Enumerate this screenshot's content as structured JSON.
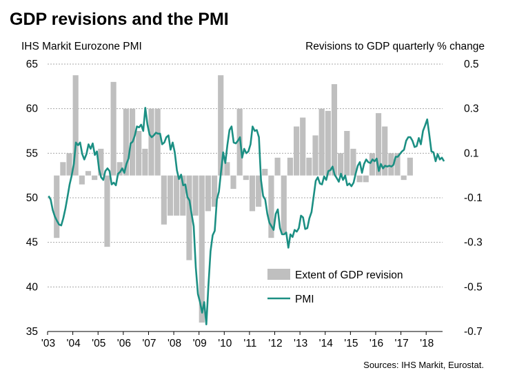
{
  "title": "GDP revisions and the PMI",
  "left_axis_label": "IHS Markit Eurozone PMI",
  "right_axis_label": "Revisions to GDP quarterly % change",
  "source": "Sources: IHS Markit, Eurostat.",
  "colors": {
    "bars": "#bfbfbf",
    "line": "#1b8f83",
    "grid": "#a6a6a6"
  },
  "chart_data": {
    "type": "bar+line",
    "x_start_year": 2003,
    "x_ticks": [
      "'03",
      "'04",
      "'05",
      "'06",
      "'07",
      "'08",
      "'09",
      "'10",
      "'11",
      "'12",
      "'13",
      "'14",
      "'15",
      "'16",
      "'17",
      "'18"
    ],
    "y_left": {
      "label": "IHS Markit Eurozone PMI",
      "min": 35,
      "max": 65,
      "ticks": [
        35,
        40,
        45,
        50,
        55,
        60,
        65
      ]
    },
    "y_right": {
      "label": "Revisions to GDP quarterly % change",
      "min": -0.7,
      "max": 0.5,
      "ticks": [
        "-0.7",
        "-0.5",
        "-0.3",
        "-0.1",
        "0.1",
        "0.3",
        "0.5"
      ]
    },
    "grid": true,
    "legend": {
      "position": "bottom-right",
      "entries": [
        "Extent of GDP revision",
        "PMI"
      ]
    },
    "series": [
      {
        "name": "Extent of GDP revision",
        "type": "bar",
        "axis": "right",
        "frequency": "quarterly",
        "values": [
          0.0,
          -0.28,
          0.06,
          0.1,
          0.45,
          -0.04,
          0.02,
          -0.02,
          0.12,
          -0.32,
          0.42,
          0.06,
          0.3,
          0.3,
          0.2,
          0.12,
          0.3,
          0.3,
          -0.22,
          -0.18,
          -0.18,
          -0.18,
          -0.38,
          -0.18,
          -0.66,
          -0.16,
          -0.14,
          0.45,
          0.06,
          -0.06,
          0.3,
          -0.02,
          -0.16,
          -0.14,
          0.03,
          -0.28,
          0.08,
          -0.26,
          0.08,
          0.22,
          0.26,
          0.08,
          0.18,
          0.3,
          0.29,
          0.41,
          0.1,
          0.2,
          0.12,
          -0.03,
          -0.03,
          0.1,
          0.28,
          0.22,
          0.1,
          0.1,
          -0.02,
          0.08
        ]
      },
      {
        "name": "PMI",
        "type": "line",
        "axis": "left",
        "frequency": "monthly",
        "values": [
          50.2,
          49.8,
          48.6,
          47.9,
          47.4,
          47.0,
          46.9,
          47.7,
          48.8,
          50.1,
          51.5,
          52.5,
          53.8,
          56.2,
          55.9,
          56.2,
          54.9,
          54.3,
          54.9,
          56.0,
          55.5,
          56.1,
          54.8,
          55.2,
          53.2,
          52.3,
          52.0,
          53.0,
          53.3,
          53.0,
          51.5,
          51.7,
          51.4,
          52.7,
          52.9,
          53.3,
          52.8,
          53.8,
          54.4,
          56.1,
          56.3,
          57.0,
          58.0,
          57.9,
          58.2,
          57.5,
          60.1,
          58.2,
          57.1,
          56.8,
          57.0,
          57.3,
          57.2,
          57.2,
          56.0,
          56.2,
          56.8,
          57.0,
          55.4,
          56.2,
          55.1,
          53.1,
          52.1,
          52.6,
          51.4,
          51.5,
          50.1,
          49.7,
          48.2,
          46.8,
          42.2,
          39.2,
          38.3,
          37.1,
          38.3,
          35.8,
          40.1,
          44.0,
          45.8,
          46.3,
          49.8,
          50.7,
          53.0,
          55.1,
          53.9,
          55.9,
          57.6,
          58.0,
          56.2,
          56.1,
          56.4,
          56.8,
          54.5,
          55.5,
          55.0,
          55.2,
          56.0,
          58.0,
          57.5,
          57.6,
          56.8,
          52.0,
          50.2,
          49.8,
          48.2,
          47.2,
          46.8,
          46.4,
          48.2,
          48.7,
          46.6,
          45.9,
          45.9,
          46.1,
          44.4,
          45.9,
          45.6,
          46.4,
          46.2,
          46.6,
          48.0,
          47.8,
          46.5,
          46.6,
          47.7,
          48.4,
          50.1,
          51.9,
          52.3,
          51.6,
          51.5,
          52.4,
          52.0,
          53.0,
          53.1,
          53.5,
          52.6,
          52.2,
          51.8,
          52.7,
          52.0,
          52.5,
          51.4,
          51.6,
          51.3,
          51.7,
          52.7,
          53.6,
          54.0,
          52.8,
          53.8,
          54.3,
          54.0,
          53.9,
          54.3,
          54.1,
          54.4,
          53.0,
          53.8,
          53.3,
          53.6,
          53.5,
          53.6,
          53.5,
          53.7,
          54.6,
          54.6,
          54.9,
          55.2,
          55.4,
          56.4,
          56.8,
          56.8,
          56.4,
          55.7,
          55.8,
          56.7,
          56.0,
          57.5,
          58.1,
          58.8,
          57.1,
          55.2,
          55.1,
          54.1,
          54.9,
          54.3,
          54.5,
          54.1
        ]
      }
    ]
  }
}
